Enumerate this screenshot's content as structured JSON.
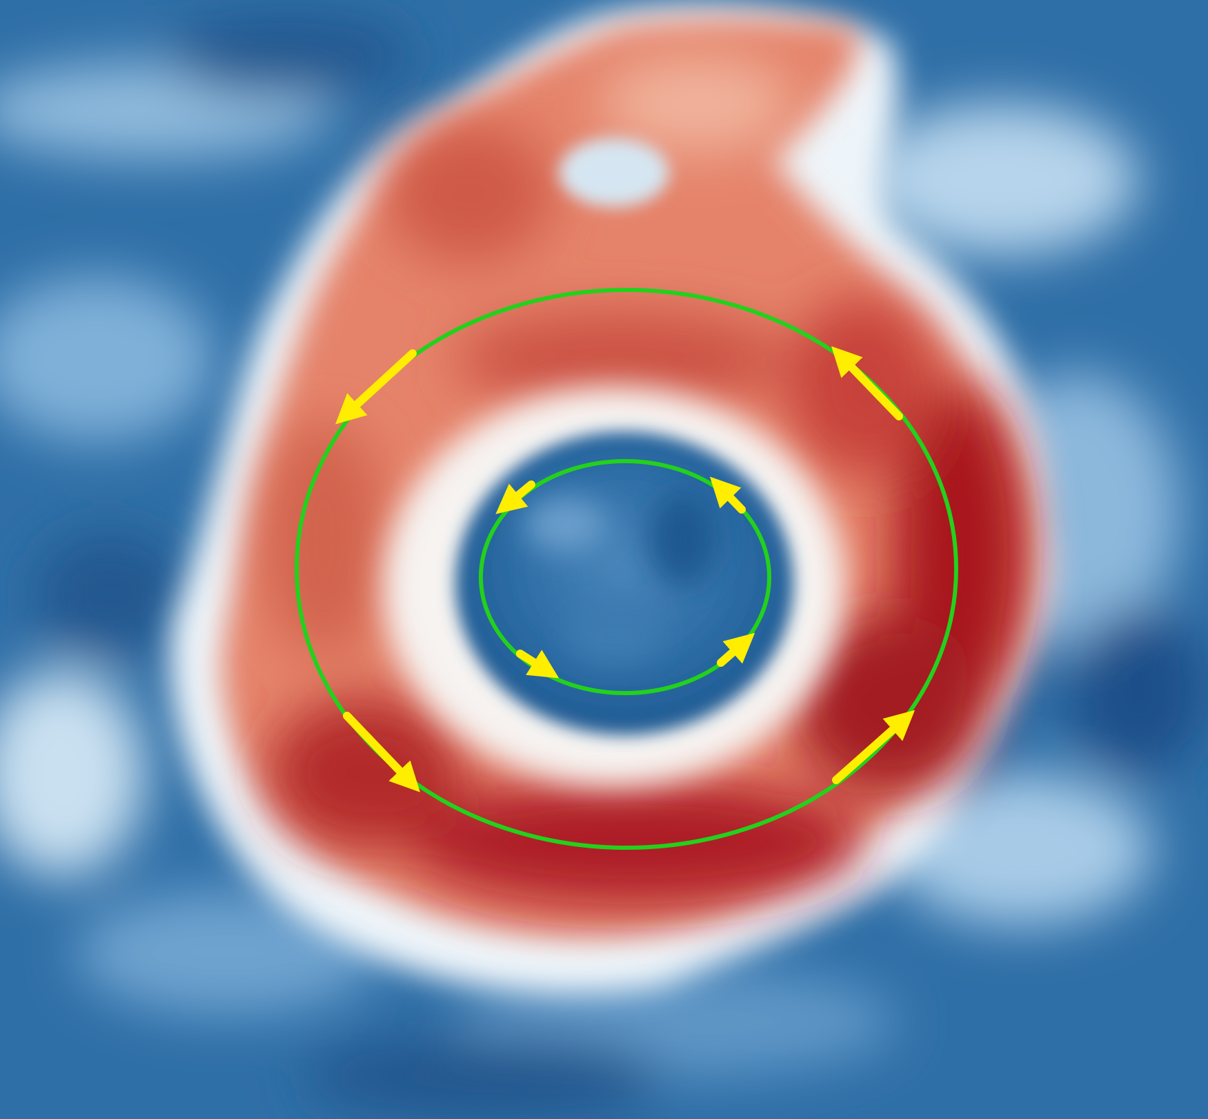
{
  "image": {
    "description_name": "vortex-field-map",
    "colors": {
      "background_blue": "#2a6aa2",
      "mid_blue": "#5b93c2",
      "light_blue": "#bfd9ec",
      "white": "#f7f7f7",
      "light_red": "#f1a68b",
      "red": "#d8604a",
      "dark_red": "#a4161d",
      "ring_outline": "#23d11c",
      "arrow": "#ffee00"
    }
  }
}
